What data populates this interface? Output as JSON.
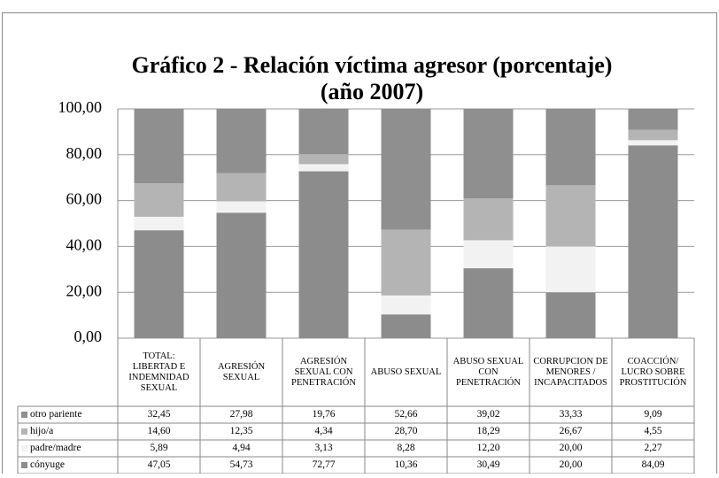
{
  "chart_data": {
    "type": "stacked_bar",
    "title": [
      "Gráfico 2 - Relación víctima agresor (porcentaje)",
      "(año 2007)"
    ],
    "categories": [
      "TOTAL: LIBERTAD E INDEMNIDAD SEXUAL",
      "AGRESIÓN SEXUAL",
      "AGRESIÓN SEXUAL CON PENETRACIÓN",
      "ABUSO SEXUAL",
      "ABUSO SEXUAL CON PENETRACIÓN",
      "CORRUPCION DE MENORES / INCAPACITADOS",
      "COACCIÓN/ LUCRO SOBRE PROSTITUCIÓN"
    ],
    "series": [
      {
        "name": "otro pariente",
        "color": "#8f8f8f",
        "values": [
          32.45,
          27.98,
          19.76,
          52.66,
          39.02,
          33.33,
          9.09
        ],
        "value_labels": [
          "32,45",
          "27,98",
          "19,76",
          "52,66",
          "39,02",
          "33,33",
          "9,09"
        ]
      },
      {
        "name": "hijo/a",
        "color": "#b4b4b4",
        "values": [
          14.6,
          12.35,
          4.34,
          28.7,
          18.29,
          26.67,
          4.55
        ],
        "value_labels": [
          "14,60",
          "12,35",
          "4,34",
          "28,70",
          "18,29",
          "26,67",
          "4,55"
        ]
      },
      {
        "name": "padre/madre",
        "color": "#f2f2f2",
        "values": [
          5.89,
          4.94,
          3.13,
          8.28,
          12.2,
          20.0,
          2.27
        ],
        "value_labels": [
          "5,89",
          "4,94",
          "3,13",
          "8,28",
          "12,20",
          "20,00",
          "2,27"
        ]
      },
      {
        "name": "cónyuge",
        "color": "#8c8c8c",
        "values": [
          47.05,
          54.73,
          72.77,
          10.36,
          30.49,
          20.0,
          84.09
        ],
        "value_labels": [
          "47,05",
          "54,73",
          "72,77",
          "10,36",
          "30,49",
          "20,00",
          "84,09"
        ]
      }
    ],
    "ylim": [
      0,
      100
    ],
    "yticks": [
      {
        "value": 0,
        "label": "0,00"
      },
      {
        "value": 20,
        "label": "20,00"
      },
      {
        "value": 40,
        "label": "40,00"
      },
      {
        "value": 60,
        "label": "60,00"
      },
      {
        "value": 80,
        "label": "80,00"
      },
      {
        "value": 100,
        "label": "100,00"
      }
    ],
    "grid": true
  }
}
